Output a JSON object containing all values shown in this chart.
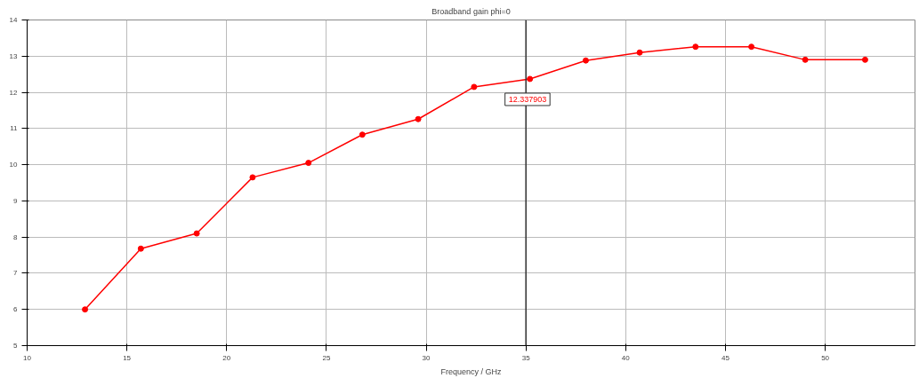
{
  "chart_data": {
    "type": "line",
    "title": "Broadband gain phi=0",
    "xlabel": "Frequency / GHz",
    "x": [
      12.9,
      15.7,
      18.5,
      21.3,
      24.1,
      26.8,
      29.6,
      32.4,
      35.2,
      38.0,
      40.7,
      43.5,
      46.3,
      49.0,
      52.0
    ],
    "series": [
      {
        "color": "#ff0000",
        "values": [
          6.0,
          7.68,
          8.1,
          9.65,
          10.05,
          10.83,
          11.26,
          12.15,
          12.37,
          12.88,
          13.1,
          13.26,
          13.26,
          12.9,
          12.9
        ]
      }
    ],
    "xlim": [
      10,
      54.5
    ],
    "xticks": [
      10,
      15,
      20,
      25,
      30,
      35,
      40,
      45,
      50
    ],
    "ylim": [
      5,
      14
    ],
    "yticks": [
      5,
      6,
      7,
      8,
      9,
      10,
      11,
      12,
      13,
      14
    ],
    "ref_lines": [
      {
        "axis": "x",
        "value": 35,
        "color": "#333333"
      }
    ],
    "annotations": [
      {
        "text": "12.337903",
        "x": 35.2,
        "y": 12.37
      }
    ],
    "grid": true,
    "marker": "circle",
    "line_style": "solid"
  }
}
